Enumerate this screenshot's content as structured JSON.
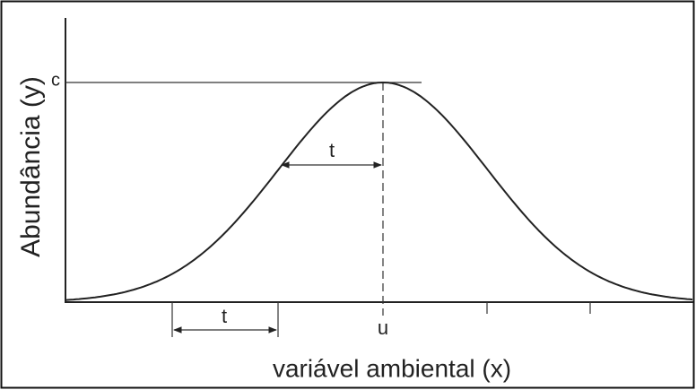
{
  "axis_labels": {
    "y": "Abundância (y)",
    "x": "variável ambiental (x)"
  },
  "labels": {
    "c": "c",
    "t_upper": "t",
    "t_lower": "t",
    "u": "u"
  }
}
